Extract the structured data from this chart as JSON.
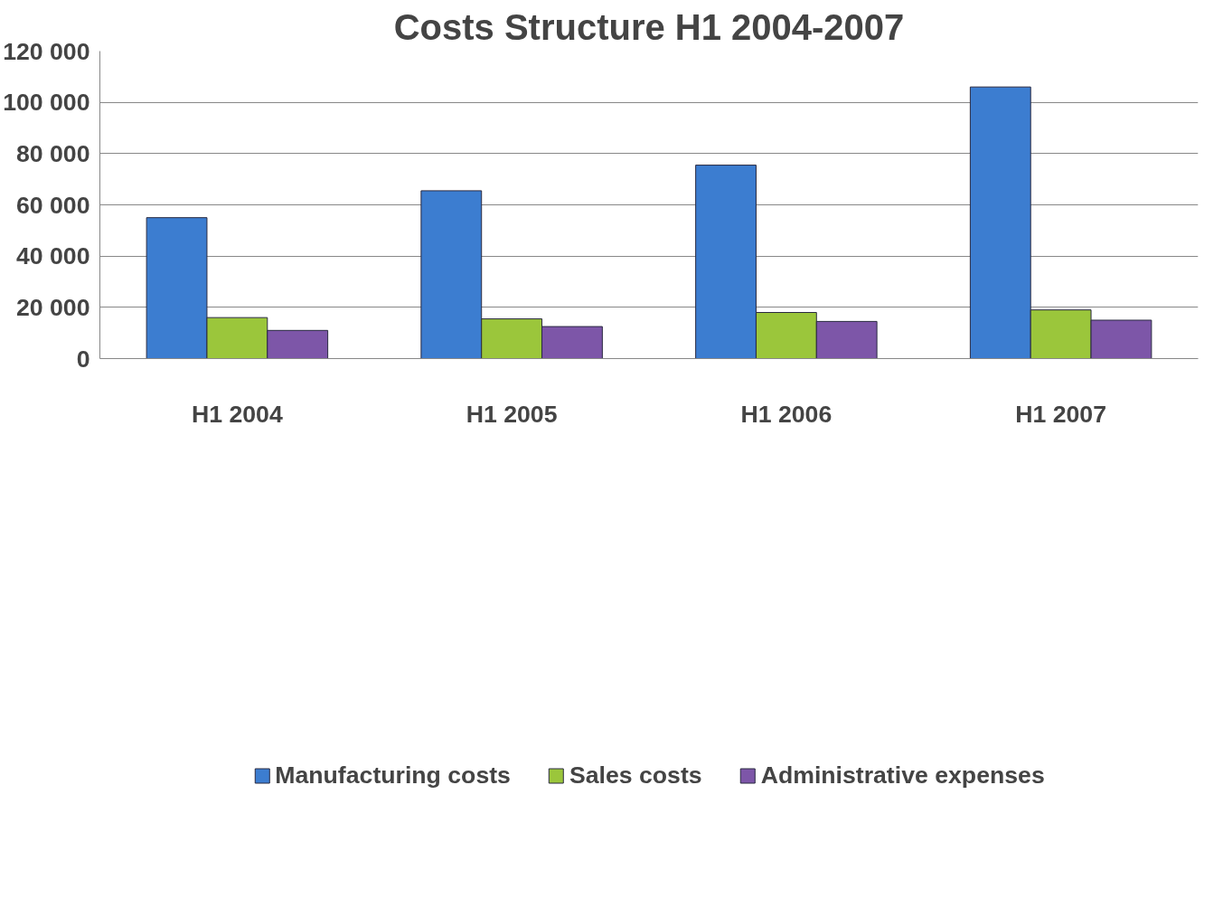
{
  "chart_data": {
    "type": "bar",
    "title": "Costs Structure H1 2004-2007",
    "categories": [
      "H1 2004",
      "H1 2005",
      "H1 2006",
      "H1 2007"
    ],
    "series": [
      {
        "name": "Manufacturing costs",
        "color": "#3c7dd0",
        "values": [
          55000,
          65500,
          75500,
          106000
        ]
      },
      {
        "name": "Sales costs",
        "color": "#9bc63b",
        "values": [
          16000,
          15500,
          18000,
          19000
        ]
      },
      {
        "name": "Administrative expenses",
        "color": "#7d56a8",
        "values": [
          11000,
          12500,
          14500,
          15000
        ]
      }
    ],
    "ylim": [
      0,
      120000
    ],
    "yticks": [
      {
        "value": 0,
        "label": "0"
      },
      {
        "value": 20000,
        "label": "20 000"
      },
      {
        "value": 40000,
        "label": "40 000"
      },
      {
        "value": 60000,
        "label": "60 000"
      },
      {
        "value": 80000,
        "label": "80 000"
      },
      {
        "value": 100000,
        "label": "100 000"
      },
      {
        "value": 120000,
        "label": "120 000"
      }
    ],
    "grid": "y",
    "legend": "bottom"
  }
}
